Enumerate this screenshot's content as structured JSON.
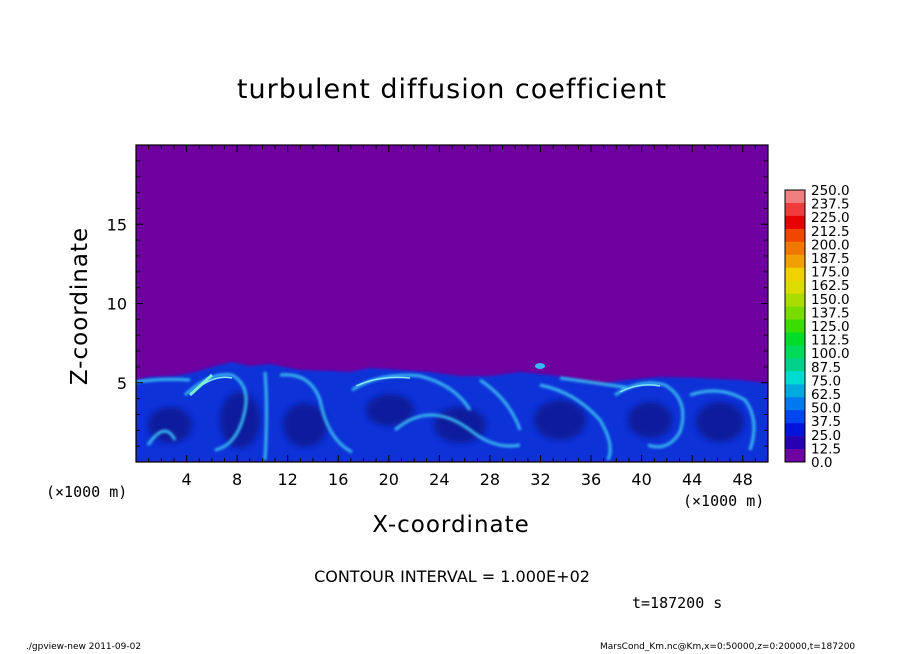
{
  "chart_data": {
    "type": "heatmap",
    "title": "turbulent diffusion coefficient",
    "xlabel": "X-coordinate",
    "ylabel": "Z-coordinate",
    "x_unit": "(×1000 m)",
    "xlim": [
      0,
      50
    ],
    "ylim": [
      0,
      20
    ],
    "x_ticks": [
      "4",
      "8",
      "12",
      "16",
      "20",
      "24",
      "28",
      "32",
      "36",
      "40",
      "44",
      "48"
    ],
    "y_ticks": [
      "5",
      "10",
      "15"
    ],
    "colorbar": {
      "levels": [
        "250.0",
        "237.5",
        "225.0",
        "212.5",
        "200.0",
        "187.5",
        "175.0",
        "162.5",
        "150.0",
        "137.5",
        "125.0",
        "112.5",
        "100.0",
        "87.5",
        "75.0",
        "62.5",
        "50.0",
        "37.5",
        "25.0",
        "12.5",
        "0.0"
      ],
      "colors": [
        "#f08080",
        "#f03c3c",
        "#e60000",
        "#f04600",
        "#f07800",
        "#f0a000",
        "#f0d200",
        "#dcdc00",
        "#aadc00",
        "#78dc00",
        "#3cdc00",
        "#00dc28",
        "#00dc5a",
        "#00d28c",
        "#00dcd2",
        "#00aadc",
        "#0078f0",
        "#0046f0",
        "#0014dc",
        "#2800b4",
        "#6e00a0"
      ]
    },
    "contour_interval": "CONTOUR INTERVAL = 1.000E+02",
    "time": "t=187200 s",
    "background_value": 0.0,
    "turbulent_layer_top_z": 5.5
  },
  "footer": {
    "left": "./gpview-new   2011-09-02",
    "right": "MarsCond_Km.nc@Km,x=0:50000,z=0:20000,t=187200"
  }
}
